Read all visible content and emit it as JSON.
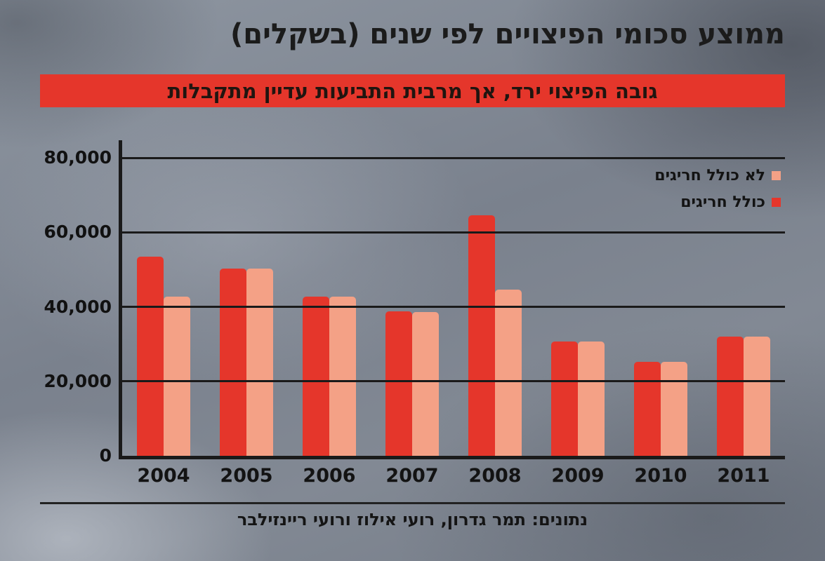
{
  "page": {
    "title": "ממוצע סכומי הפיצויים לפי שנים (בשקלים)",
    "banner": "גובה הפיצוי ירד, אך מרבית התביעות עדיין מתקבלות",
    "source": "נתונים: תמר גדרון, רועי אילוז ורועי ריינזילבר"
  },
  "colors": {
    "red": "#e5362b",
    "salmon": "#f4a186",
    "banner_red": "#e5362b",
    "axis": "#1a1a1a"
  },
  "chart_data": {
    "type": "bar",
    "title": "ממוצע סכומי הפיצויים לפי שנים (בשקלים)",
    "categories": [
      "2004",
      "2005",
      "2006",
      "2007",
      "2008",
      "2009",
      "2010",
      "2011"
    ],
    "series": [
      {
        "name": "כולל חריגים",
        "key": "including-outliers",
        "color_key": "red",
        "values": [
          53500,
          50300,
          42700,
          38800,
          64500,
          30600,
          25200,
          32000
        ]
      },
      {
        "name": "לא כולל חריגים",
        "key": "excluding-outliers",
        "color_key": "salmon",
        "values": [
          42800,
          50300,
          42700,
          38500,
          44700,
          30600,
          25200,
          32000
        ]
      }
    ],
    "ylim": [
      0,
      80000
    ],
    "yticks": [
      0,
      20000,
      40000,
      60000,
      80000
    ],
    "ytick_labels": [
      "0",
      "20,000",
      "40,000",
      "60,000",
      "80,000"
    ],
    "grid": "horizontal",
    "legend_position": "top-right-inside",
    "legend": [
      {
        "label": "לא כולל חריגים",
        "color_key": "salmon"
      },
      {
        "label": "כולל חריגים",
        "color_key": "red"
      }
    ]
  }
}
